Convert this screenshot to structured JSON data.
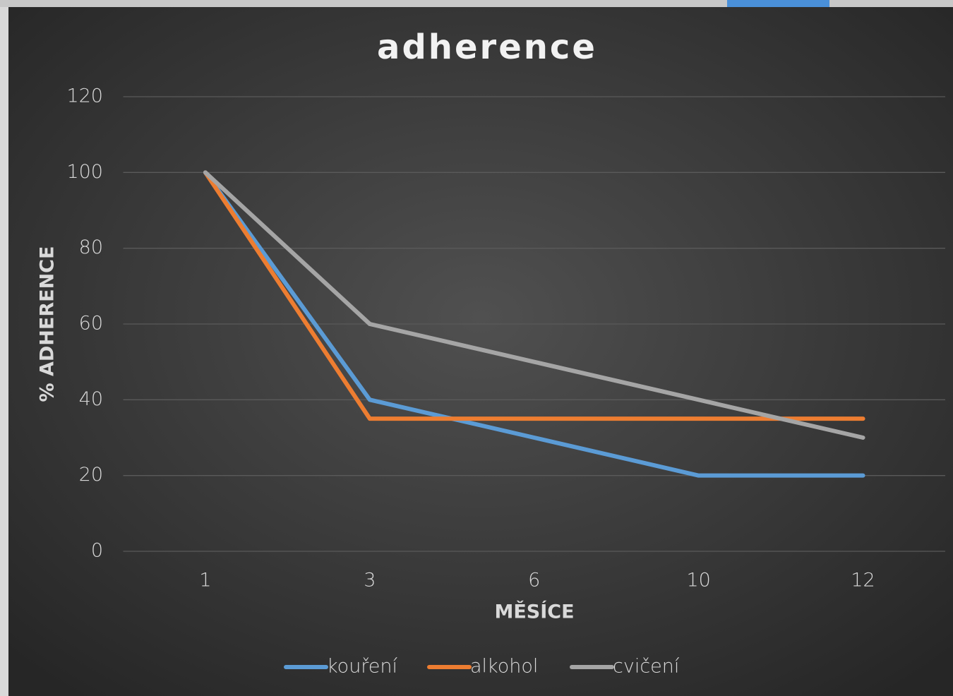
{
  "chart_data": {
    "type": "line",
    "title": "adherence",
    "x_label": "MĚSÍCE",
    "y_label": "% ADHERENCE",
    "categories": [
      "1",
      "3",
      "6",
      "10",
      "12"
    ],
    "series": [
      {
        "name": "kouření",
        "color": "#5b9bd5",
        "values": [
          100,
          40,
          30,
          20,
          20
        ]
      },
      {
        "name": "alkohol",
        "color": "#ed7d31",
        "values": [
          100,
          35,
          35,
          35,
          35
        ]
      },
      {
        "name": "cvičení",
        "color": "#a5a5a5",
        "values": [
          100,
          60,
          50,
          40,
          30
        ]
      }
    ],
    "ylim": [
      0,
      120
    ],
    "yticks": [
      0,
      20,
      40,
      60,
      80,
      100,
      120
    ],
    "grid": true,
    "legend": "bottom"
  }
}
